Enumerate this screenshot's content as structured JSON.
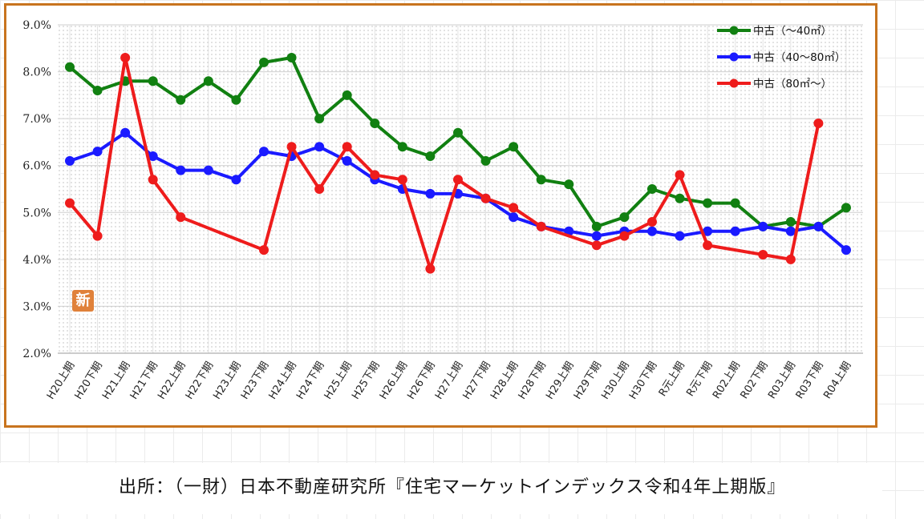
{
  "chart_data": {
    "type": "line",
    "title": "",
    "xlabel": "",
    "ylabel": "",
    "ylim": [
      2.0,
      9.0
    ],
    "yticks": [
      "9.0%",
      "8.0%",
      "7.0%",
      "6.0%",
      "5.0%",
      "4.0%",
      "3.0%",
      "2.0%"
    ],
    "grid": true,
    "legend_position": "top-right",
    "categories": [
      "H20上期",
      "H20下期",
      "H21上期",
      "H21下期",
      "H22上期",
      "H22下期",
      "H23上期",
      "H23下期",
      "H24上期",
      "H24下期",
      "H25上期",
      "H25下期",
      "H26上期",
      "H26下期",
      "H27上期",
      "H27下期",
      "H28上期",
      "H28下期",
      "H29上期",
      "H29下期",
      "H30上期",
      "H30下期",
      "R元上期",
      "R元下期",
      "R02上期",
      "R02下期",
      "R03上期",
      "R03下期",
      "R04上期"
    ],
    "series": [
      {
        "name": "中古（〜40㎡）",
        "color": "#118011",
        "values": [
          8.1,
          7.6,
          7.8,
          7.8,
          7.4,
          7.8,
          7.4,
          8.2,
          8.3,
          7.0,
          7.5,
          6.9,
          6.4,
          6.2,
          6.7,
          6.1,
          6.4,
          5.7,
          5.6,
          4.7,
          4.9,
          5.5,
          5.3,
          5.2,
          5.2,
          4.7,
          4.8,
          4.7,
          5.1
        ]
      },
      {
        "name": "中古（40〜80㎡）",
        "color": "#1a1aff",
        "values": [
          6.1,
          6.3,
          6.7,
          6.2,
          5.9,
          5.9,
          5.7,
          6.3,
          6.2,
          6.4,
          6.1,
          5.7,
          5.5,
          5.4,
          5.4,
          5.3,
          4.9,
          4.7,
          4.6,
          4.5,
          4.6,
          4.6,
          4.5,
          4.6,
          4.6,
          4.7,
          4.6,
          4.7,
          4.2
        ]
      },
      {
        "name": "中古（80㎡〜）",
        "color": "#ee1c1c",
        "values": [
          5.2,
          4.5,
          8.3,
          5.7,
          4.9,
          null,
          null,
          4.2,
          6.4,
          5.5,
          6.4,
          5.8,
          5.7,
          3.8,
          5.7,
          5.3,
          5.1,
          4.7,
          null,
          4.3,
          4.5,
          4.8,
          5.8,
          4.3,
          null,
          4.1,
          4.0,
          6.9,
          null
        ]
      }
    ]
  },
  "badge": {
    "text": "新",
    "color": "#e0813a"
  },
  "source": {
    "text": "出所：（一財）日本不動産研究所『住宅マーケットインデックス令和4年上期版』"
  },
  "frame_color": "#c8741e"
}
